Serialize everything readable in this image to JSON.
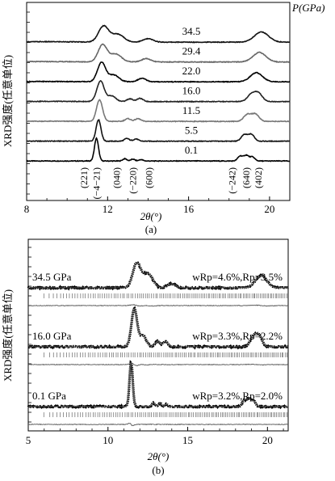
{
  "chart_data": [
    {
      "type": "line",
      "panel_label": "(a)",
      "xlabel": "2θ(°)",
      "ylabel": "XRD强度(任意单位)",
      "legend_title": "P(GPa)",
      "xlim": [
        8,
        21
      ],
      "x_ticks": [
        "8",
        "12",
        "16",
        "20"
      ],
      "x_tick_values": [
        8,
        12,
        16,
        20
      ],
      "series": [
        {
          "label": "0.1",
          "offset": 0,
          "peaks": [
            [
              11.45,
              1.0,
              0.1
            ],
            [
              12.85,
              0.1,
              0.1
            ],
            [
              13.25,
              0.08,
              0.1
            ],
            [
              13.65,
              0.06,
              0.1
            ],
            [
              18.55,
              0.22,
              0.12
            ],
            [
              18.85,
              0.25,
              0.12
            ],
            [
              19.15,
              0.18,
              0.12
            ]
          ]
        },
        {
          "label": "5.5",
          "offset": 1,
          "peaks": [
            [
              11.55,
              0.95,
              0.12
            ],
            [
              12.95,
              0.12,
              0.12
            ],
            [
              13.4,
              0.1,
              0.12
            ],
            [
              18.75,
              0.28,
              0.15
            ],
            [
              19.1,
              0.3,
              0.15
            ]
          ]
        },
        {
          "label": "11.5",
          "offset": 2,
          "peaks": [
            [
              11.6,
              0.95,
              0.15
            ],
            [
              13.0,
              0.12,
              0.14
            ],
            [
              13.5,
              0.12,
              0.14
            ],
            [
              18.9,
              0.3,
              0.18
            ],
            [
              19.3,
              0.32,
              0.18
            ]
          ]
        },
        {
          "label": "16.0",
          "offset": 3,
          "peaks": [
            [
              11.65,
              0.9,
              0.18
            ],
            [
              12.2,
              0.25,
              0.2
            ],
            [
              13.1,
              0.12,
              0.15
            ],
            [
              13.6,
              0.14,
              0.15
            ],
            [
              19.1,
              0.3,
              0.2
            ],
            [
              19.45,
              0.35,
              0.2
            ]
          ]
        },
        {
          "label": "22.0",
          "offset": 4,
          "peaks": [
            [
              11.7,
              0.85,
              0.2
            ],
            [
              12.3,
              0.3,
              0.25
            ],
            [
              13.7,
              0.15,
              0.2
            ],
            [
              19.35,
              0.4,
              0.3
            ]
          ]
        },
        {
          "label": "29.4",
          "offset": 5,
          "peaks": [
            [
              11.75,
              0.75,
              0.22
            ],
            [
              12.4,
              0.35,
              0.28
            ],
            [
              13.9,
              0.15,
              0.22
            ],
            [
              19.5,
              0.42,
              0.32
            ]
          ]
        },
        {
          "label": "34.5",
          "offset": 6,
          "peaks": [
            [
              11.8,
              0.7,
              0.25
            ],
            [
              12.5,
              0.35,
              0.3
            ],
            [
              14.0,
              0.15,
              0.25
            ],
            [
              19.6,
              0.45,
              0.35
            ]
          ]
        }
      ],
      "reflections": [
        {
          "label": "(221)",
          "x": 11.0
        },
        {
          "label": "(−4−21)",
          "x": 11.6
        },
        {
          "label": "(040)",
          "x": 12.6
        },
        {
          "label": "(−220)",
          "x": 13.4
        },
        {
          "label": "(600)",
          "x": 14.2
        },
        {
          "label": "(−242)",
          "x": 18.3
        },
        {
          "label": "(640)",
          "x": 19.0
        },
        {
          "label": "(402)",
          "x": 19.6
        }
      ]
    },
    {
      "type": "line",
      "panel_label": "(b)",
      "xlabel": "2θ(°)",
      "ylabel": "XRD强度(任意单位)",
      "xlim": [
        5,
        21.3
      ],
      "x_ticks": [
        "5",
        "10",
        "15",
        "20"
      ],
      "x_tick_values": [
        5,
        10,
        15,
        20
      ],
      "series": [
        {
          "pressure_label": "0.1 GPa",
          "fit_label": "wRp=3.2%,Rp=2.0%",
          "offset": 0,
          "peaks": [
            [
              11.45,
              1.0,
              0.1
            ],
            [
              12.85,
              0.08,
              0.1
            ],
            [
              13.25,
              0.07,
              0.1
            ],
            [
              13.65,
              0.05,
              0.1
            ],
            [
              18.55,
              0.15,
              0.12
            ],
            [
              18.85,
              0.18,
              0.12
            ],
            [
              19.15,
              0.12,
              0.12
            ]
          ]
        },
        {
          "pressure_label": "16.0 GPa",
          "fit_label": "wRp=3.3%,Rp=2.2%",
          "offset": 1,
          "peaks": [
            [
              11.65,
              0.85,
              0.18
            ],
            [
              12.2,
              0.25,
              0.2
            ],
            [
              13.1,
              0.12,
              0.15
            ],
            [
              13.6,
              0.12,
              0.15
            ],
            [
              19.1,
              0.2,
              0.2
            ],
            [
              19.45,
              0.25,
              0.2
            ]
          ]
        },
        {
          "pressure_label": "34.5 GPa",
          "fit_label": "wRp=4.6%,Rp=3.5%",
          "offset": 2,
          "peaks": [
            [
              11.8,
              0.6,
              0.25
            ],
            [
              12.5,
              0.35,
              0.3
            ],
            [
              14.0,
              0.1,
              0.25
            ],
            [
              19.6,
              0.3,
              0.35
            ]
          ]
        }
      ]
    }
  ]
}
